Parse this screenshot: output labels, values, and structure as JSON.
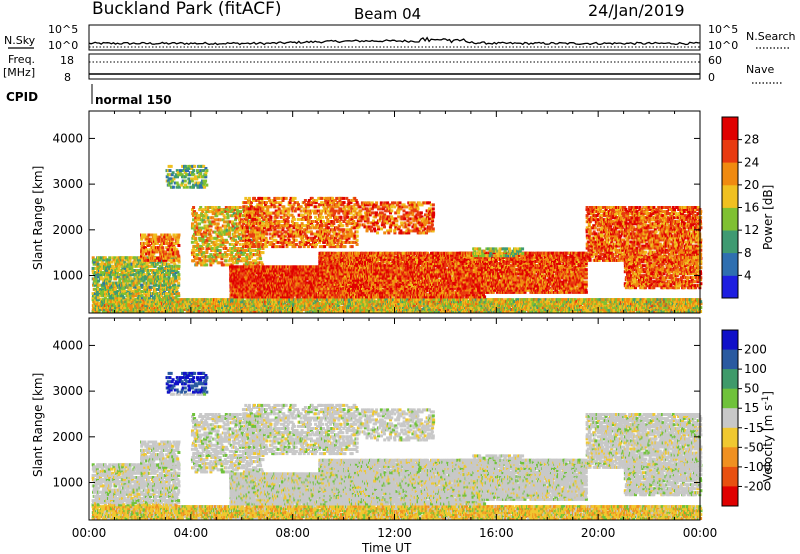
{
  "header": {
    "site": "Buckland Park (fitACF)",
    "beam": "Beam 04",
    "date": "24/Jan/2019"
  },
  "top_panel": {
    "left_label_1": "N.Sky",
    "left_label_2": "Freq.",
    "left_label_3": "[MHz]",
    "left_label_4": "CPID",
    "right_label_1": "N.Search",
    "right_label_2": "Nave",
    "nsky_ticks": [
      "10^5",
      "10^0"
    ],
    "nsearch_ticks": [
      "10^5",
      "10^0"
    ],
    "freq_ticks": [
      "18",
      "8"
    ],
    "nave_ticks": [
      "60",
      "0"
    ],
    "cpid_text": "normal 150"
  },
  "chart_data": [
    {
      "type": "heatmap",
      "name": "power-panel",
      "xlabel": "",
      "ylabel": "Slant Range [km]",
      "x_ticks": [
        "00:00",
        "04:00",
        "08:00",
        "12:00",
        "16:00",
        "20:00",
        "00:00"
      ],
      "y_ticks": [
        1000,
        2000,
        3000,
        4000
      ],
      "ylim": [
        180,
        4600
      ],
      "xlim_hours": [
        0,
        24
      ],
      "colorbar": {
        "label": "Power [dB]",
        "ticks": [
          4,
          8,
          12,
          16,
          20,
          24,
          28
        ],
        "range": [
          0,
          32
        ],
        "colors": [
          "#1f1fe0",
          "#2f6fb0",
          "#3f9a72",
          "#7fc032",
          "#f0c020",
          "#f08a10",
          "#e83a10",
          "#e00000"
        ]
      }
    },
    {
      "type": "heatmap",
      "name": "velocity-panel",
      "xlabel": "Time UT",
      "ylabel": "Slant Range [km]",
      "x_ticks": [
        "00:00",
        "04:00",
        "08:00",
        "12:00",
        "16:00",
        "20:00",
        "00:00"
      ],
      "y_ticks": [
        1000,
        2000,
        3000,
        4000
      ],
      "ylim": [
        180,
        4600
      ],
      "xlim_hours": [
        0,
        24
      ],
      "colorbar": {
        "label": "Velocity [m s",
        "label_sup": "-1",
        "label_end": "]",
        "ticks": [
          200,
          100,
          50,
          15,
          -15,
          -50,
          -100,
          -200
        ],
        "colors": [
          "#1010c8",
          "#2a5aa0",
          "#3f9a6a",
          "#6fc23a",
          "#c8c8c8",
          "#f0c830",
          "#f09020",
          "#e85010",
          "#e00000"
        ]
      }
    }
  ]
}
